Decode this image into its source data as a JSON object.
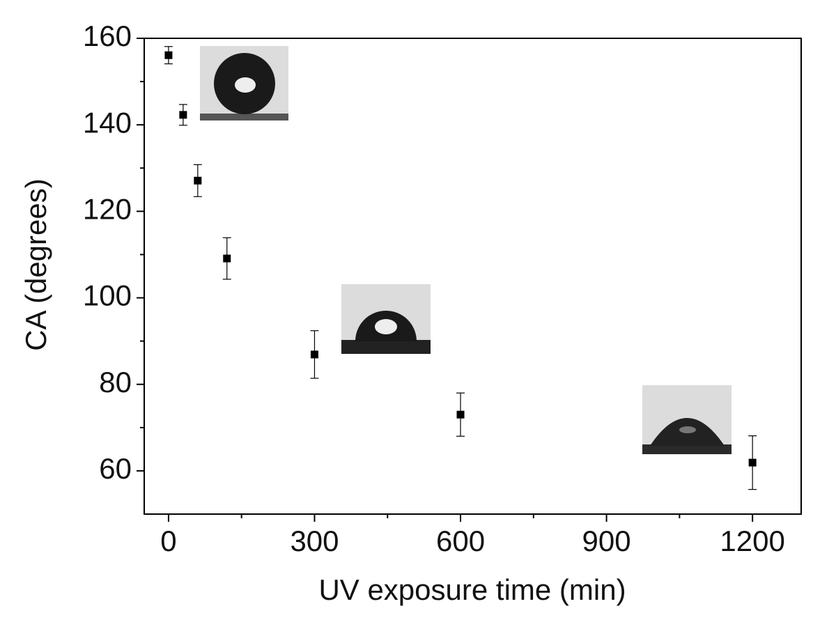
{
  "chart_data": {
    "type": "scatter",
    "x_label": "UV exposure time (min)",
    "y_label": "CA (degrees)",
    "x": [
      0,
      30,
      60,
      120,
      300,
      600,
      1200
    ],
    "values": [
      156.1,
      142.3,
      127.1,
      109.1,
      86.9,
      73,
      61.9
    ],
    "errors": [
      2,
      2.4,
      3.7,
      4.8,
      5.5,
      5,
      6.2
    ],
    "color": "#000000",
    "xlim": [
      -50,
      1300
    ],
    "xticks": [
      0,
      300,
      600,
      900,
      1200
    ],
    "ylim": [
      50,
      160
    ],
    "yticks": [
      60,
      80,
      100,
      120,
      140,
      160
    ],
    "grid": false
  }
}
